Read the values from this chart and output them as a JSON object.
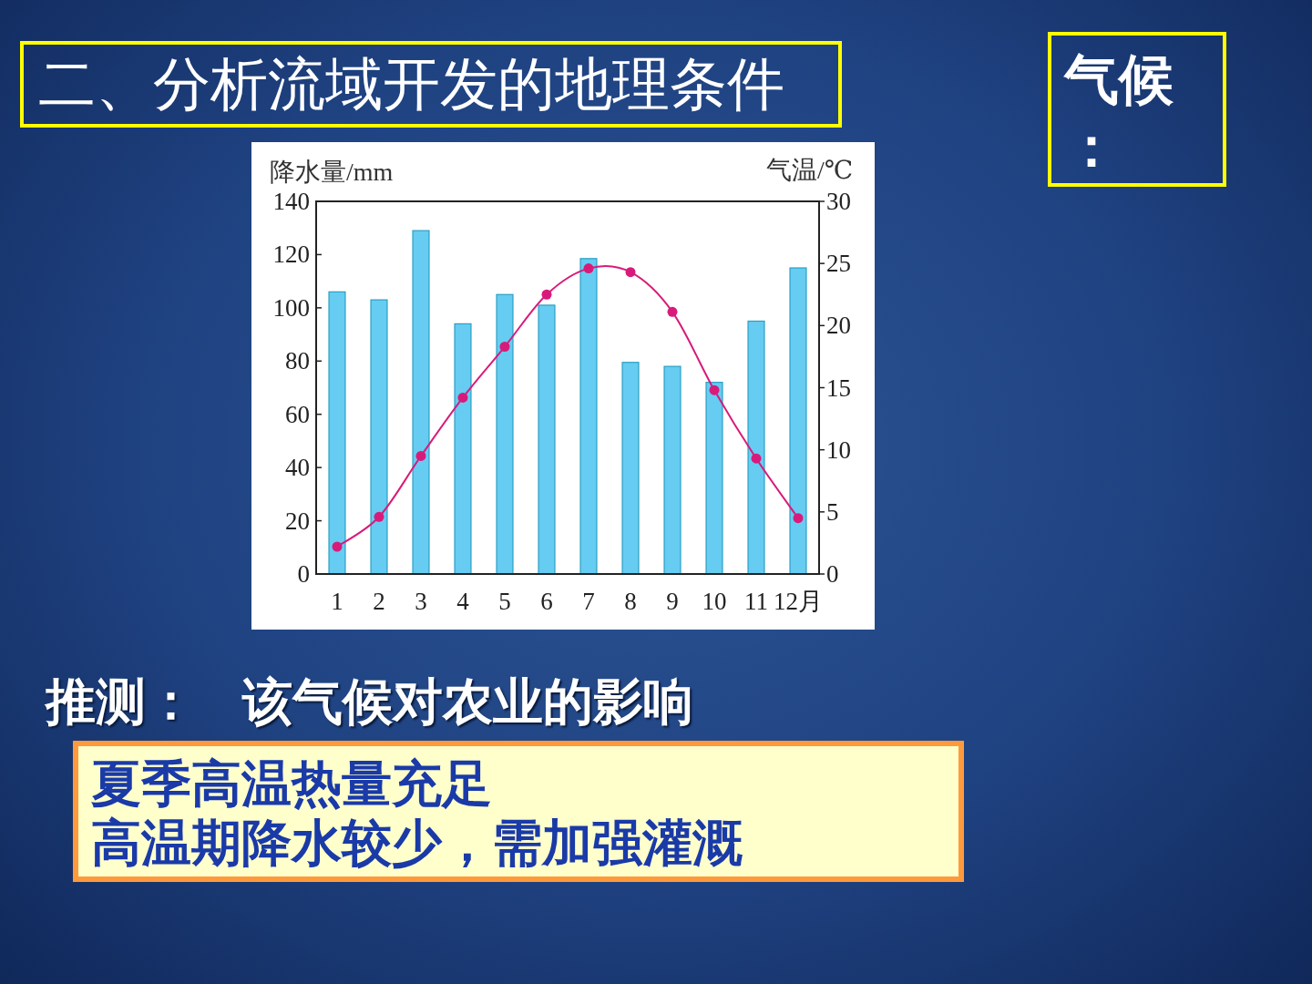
{
  "chart_data": {
    "type": "bar",
    "title": "二、分析流域开发的地理条件",
    "annotations": [
      "气候：",
      "推测：",
      "该气候对农业的影响",
      "夏季高温热量充足",
      "高温期降水较少，需加强灌溉"
    ],
    "categories": [
      "1",
      "2",
      "3",
      "4",
      "5",
      "6",
      "7",
      "8",
      "9",
      "10",
      "11",
      "12月"
    ],
    "ylabel": "降水量/mm",
    "y2label": "气温/℃",
    "ylim": [
      0,
      140
    ],
    "yticks": [
      0,
      20,
      40,
      60,
      80,
      100,
      120,
      140
    ],
    "y2lim": [
      0,
      30
    ],
    "y2ticks": [
      0,
      5,
      10,
      15,
      20,
      25,
      30
    ],
    "series": [
      {
        "color": "#66ccf2",
        "values": [
          106,
          103,
          129,
          94,
          105,
          101,
          118.5,
          79.5,
          78,
          72,
          95,
          115
        ]
      },
      {
        "type": "line",
        "axis": "y2",
        "color": "#d81b7a",
        "marker": "circle",
        "values": [
          2.2,
          4.6,
          9.5,
          14.2,
          18.3,
          22.5,
          24.6,
          24.3,
          21.1,
          14.8,
          9.3,
          4.5
        ]
      }
    ]
  }
}
